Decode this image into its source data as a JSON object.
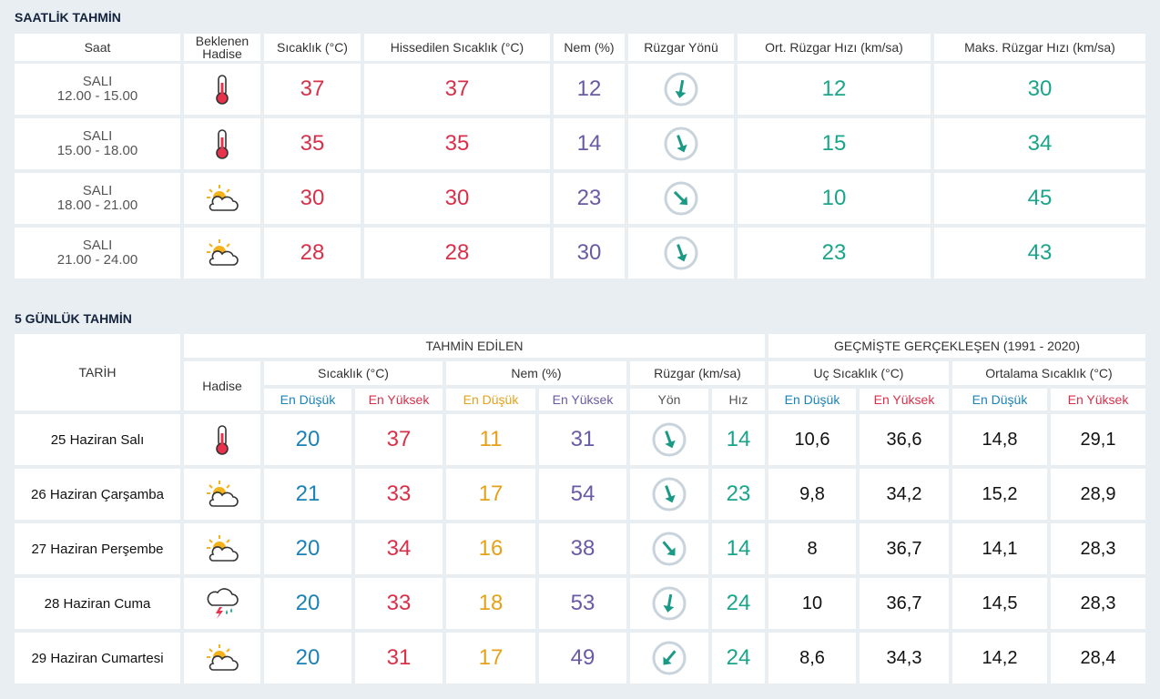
{
  "hourly": {
    "title": "SAATLİK TAHMİN",
    "headers": [
      "Saat",
      "Beklenen Hadise",
      "Sıcaklık (°C)",
      "Hissedilen Sıcaklık (°C)",
      "Nem (%)",
      "Rüzgar Yönü",
      "Ort. Rüzgar Hızı (km/sa)",
      "Maks. Rüzgar Hızı (km/sa)"
    ],
    "rows": [
      {
        "day": "SALI",
        "time": "12.00 - 15.00",
        "temp": 37,
        "feels": 37,
        "humidity": 12,
        "wind_avg": 12,
        "wind_max": 30
      },
      {
        "day": "SALI",
        "time": "15.00 - 18.00",
        "temp": 35,
        "feels": 35,
        "humidity": 14,
        "wind_avg": 15,
        "wind_max": 34
      },
      {
        "day": "SALI",
        "time": "18.00 - 21.00",
        "temp": 30,
        "feels": 30,
        "humidity": 23,
        "wind_avg": 10,
        "wind_max": 45
      },
      {
        "day": "SALI",
        "time": "21.00 - 24.00",
        "temp": 28,
        "feels": 28,
        "humidity": 30,
        "wind_avg": 23,
        "wind_max": 43
      }
    ]
  },
  "daily": {
    "title": "5 GÜNLÜK TAHMİN",
    "date_header": "TARİH",
    "event_header": "Hadise",
    "forecast_header": "TAHMİN EDİLEN",
    "history_header": "GEÇMİŞTE GERÇEKLEŞEN (1991 - 2020)",
    "groups": [
      "Sıcaklık (°C)",
      "Nem (%)",
      "Rüzgar (km/sa)",
      "Uç Sıcaklık (°C)",
      "Ortalama Sıcaklık (°C)"
    ],
    "subheaders": [
      "En Düşük",
      "En Yüksek",
      "En Düşük",
      "En Yüksek",
      "Yön",
      "Hız",
      "En Düşük",
      "En Yüksek",
      "En Düşük",
      "En Yüksek"
    ],
    "rows": [
      {
        "date": "25 Haziran Salı",
        "temp_min": 20,
        "temp_max": 37,
        "hum_min": 11,
        "hum_max": 31,
        "wind_speed": 14,
        "extreme_min": "10,6",
        "extreme_max": "36,6",
        "avg_min": "14,8",
        "avg_max": "29,1"
      },
      {
        "date": "26 Haziran Çarşamba",
        "temp_min": 21,
        "temp_max": 33,
        "hum_min": 17,
        "hum_max": 54,
        "wind_speed": 23,
        "extreme_min": "9,8",
        "extreme_max": "34,2",
        "avg_min": "15,2",
        "avg_max": "28,9"
      },
      {
        "date": "27 Haziran Perşembe",
        "temp_min": 20,
        "temp_max": 34,
        "hum_min": 16,
        "hum_max": 38,
        "wind_speed": 14,
        "extreme_min": 8,
        "extreme_max": "36,7",
        "avg_min": "14,1",
        "avg_max": "28,3"
      },
      {
        "date": "28 Haziran Cuma",
        "temp_min": 20,
        "temp_max": 33,
        "hum_min": 18,
        "hum_max": 53,
        "wind_speed": 24,
        "extreme_min": 10,
        "extreme_max": "36,7",
        "avg_min": "14,5",
        "avg_max": "28,3"
      },
      {
        "date": "29 Haziran Cumartesi",
        "temp_min": 20,
        "temp_max": 31,
        "hum_min": 17,
        "hum_max": 49,
        "wind_speed": 24,
        "extreme_min": "8,6",
        "extreme_max": "34,3",
        "avg_min": "14,2",
        "avg_max": "28,4"
      }
    ]
  }
}
